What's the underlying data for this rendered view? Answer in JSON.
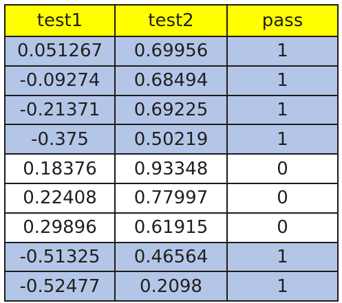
{
  "table": {
    "header": [
      "test1",
      "test2",
      "pass"
    ],
    "header_color": "#ffff00",
    "rows": [
      [
        "0.051267",
        "0.69956",
        "1"
      ],
      [
        "-0.09274",
        "0.68494",
        "1"
      ],
      [
        "-0.21371",
        "0.69225",
        "1"
      ],
      [
        "-0.375",
        "0.50219",
        "1"
      ],
      [
        "0.18376",
        "0.93348",
        "0"
      ],
      [
        "0.22408",
        "0.77997",
        "0"
      ],
      [
        "0.29896",
        "0.61915",
        "0"
      ],
      [
        "-0.51325",
        "0.46564",
        "1"
      ],
      [
        "-0.52477",
        "0.2098",
        "1"
      ]
    ],
    "row_colors": [
      "#b4c6e7",
      "#b4c6e7",
      "#b4c6e7",
      "#b4c6e7",
      "#ffffff",
      "#ffffff",
      "#ffffff",
      "#b4c6e7",
      "#b4c6e7"
    ]
  }
}
